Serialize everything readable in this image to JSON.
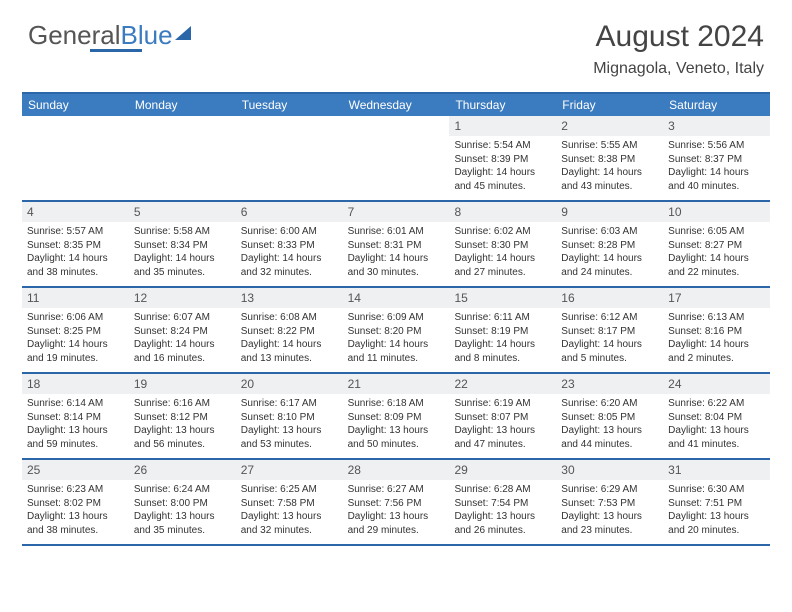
{
  "logo": {
    "text1": "General",
    "text2": "Blue"
  },
  "title": "August 2024",
  "location": "Mignagola, Veneto, Italy",
  "colors": {
    "brand": "#3b7bbf",
    "border": "#2a66a8",
    "header_bg": "#3b7bbf",
    "daynum_bg": "#eef0f2"
  },
  "daysOfWeek": [
    "Sunday",
    "Monday",
    "Tuesday",
    "Wednesday",
    "Thursday",
    "Friday",
    "Saturday"
  ],
  "weeks": [
    [
      {
        "n": "",
        "sr": "",
        "ss": "",
        "dl": ""
      },
      {
        "n": "",
        "sr": "",
        "ss": "",
        "dl": ""
      },
      {
        "n": "",
        "sr": "",
        "ss": "",
        "dl": ""
      },
      {
        "n": "",
        "sr": "",
        "ss": "",
        "dl": ""
      },
      {
        "n": "1",
        "sr": "Sunrise: 5:54 AM",
        "ss": "Sunset: 8:39 PM",
        "dl": "Daylight: 14 hours and 45 minutes."
      },
      {
        "n": "2",
        "sr": "Sunrise: 5:55 AM",
        "ss": "Sunset: 8:38 PM",
        "dl": "Daylight: 14 hours and 43 minutes."
      },
      {
        "n": "3",
        "sr": "Sunrise: 5:56 AM",
        "ss": "Sunset: 8:37 PM",
        "dl": "Daylight: 14 hours and 40 minutes."
      }
    ],
    [
      {
        "n": "4",
        "sr": "Sunrise: 5:57 AM",
        "ss": "Sunset: 8:35 PM",
        "dl": "Daylight: 14 hours and 38 minutes."
      },
      {
        "n": "5",
        "sr": "Sunrise: 5:58 AM",
        "ss": "Sunset: 8:34 PM",
        "dl": "Daylight: 14 hours and 35 minutes."
      },
      {
        "n": "6",
        "sr": "Sunrise: 6:00 AM",
        "ss": "Sunset: 8:33 PM",
        "dl": "Daylight: 14 hours and 32 minutes."
      },
      {
        "n": "7",
        "sr": "Sunrise: 6:01 AM",
        "ss": "Sunset: 8:31 PM",
        "dl": "Daylight: 14 hours and 30 minutes."
      },
      {
        "n": "8",
        "sr": "Sunrise: 6:02 AM",
        "ss": "Sunset: 8:30 PM",
        "dl": "Daylight: 14 hours and 27 minutes."
      },
      {
        "n": "9",
        "sr": "Sunrise: 6:03 AM",
        "ss": "Sunset: 8:28 PM",
        "dl": "Daylight: 14 hours and 24 minutes."
      },
      {
        "n": "10",
        "sr": "Sunrise: 6:05 AM",
        "ss": "Sunset: 8:27 PM",
        "dl": "Daylight: 14 hours and 22 minutes."
      }
    ],
    [
      {
        "n": "11",
        "sr": "Sunrise: 6:06 AM",
        "ss": "Sunset: 8:25 PM",
        "dl": "Daylight: 14 hours and 19 minutes."
      },
      {
        "n": "12",
        "sr": "Sunrise: 6:07 AM",
        "ss": "Sunset: 8:24 PM",
        "dl": "Daylight: 14 hours and 16 minutes."
      },
      {
        "n": "13",
        "sr": "Sunrise: 6:08 AM",
        "ss": "Sunset: 8:22 PM",
        "dl": "Daylight: 14 hours and 13 minutes."
      },
      {
        "n": "14",
        "sr": "Sunrise: 6:09 AM",
        "ss": "Sunset: 8:20 PM",
        "dl": "Daylight: 14 hours and 11 minutes."
      },
      {
        "n": "15",
        "sr": "Sunrise: 6:11 AM",
        "ss": "Sunset: 8:19 PM",
        "dl": "Daylight: 14 hours and 8 minutes."
      },
      {
        "n": "16",
        "sr": "Sunrise: 6:12 AM",
        "ss": "Sunset: 8:17 PM",
        "dl": "Daylight: 14 hours and 5 minutes."
      },
      {
        "n": "17",
        "sr": "Sunrise: 6:13 AM",
        "ss": "Sunset: 8:16 PM",
        "dl": "Daylight: 14 hours and 2 minutes."
      }
    ],
    [
      {
        "n": "18",
        "sr": "Sunrise: 6:14 AM",
        "ss": "Sunset: 8:14 PM",
        "dl": "Daylight: 13 hours and 59 minutes."
      },
      {
        "n": "19",
        "sr": "Sunrise: 6:16 AM",
        "ss": "Sunset: 8:12 PM",
        "dl": "Daylight: 13 hours and 56 minutes."
      },
      {
        "n": "20",
        "sr": "Sunrise: 6:17 AM",
        "ss": "Sunset: 8:10 PM",
        "dl": "Daylight: 13 hours and 53 minutes."
      },
      {
        "n": "21",
        "sr": "Sunrise: 6:18 AM",
        "ss": "Sunset: 8:09 PM",
        "dl": "Daylight: 13 hours and 50 minutes."
      },
      {
        "n": "22",
        "sr": "Sunrise: 6:19 AM",
        "ss": "Sunset: 8:07 PM",
        "dl": "Daylight: 13 hours and 47 minutes."
      },
      {
        "n": "23",
        "sr": "Sunrise: 6:20 AM",
        "ss": "Sunset: 8:05 PM",
        "dl": "Daylight: 13 hours and 44 minutes."
      },
      {
        "n": "24",
        "sr": "Sunrise: 6:22 AM",
        "ss": "Sunset: 8:04 PM",
        "dl": "Daylight: 13 hours and 41 minutes."
      }
    ],
    [
      {
        "n": "25",
        "sr": "Sunrise: 6:23 AM",
        "ss": "Sunset: 8:02 PM",
        "dl": "Daylight: 13 hours and 38 minutes."
      },
      {
        "n": "26",
        "sr": "Sunrise: 6:24 AM",
        "ss": "Sunset: 8:00 PM",
        "dl": "Daylight: 13 hours and 35 minutes."
      },
      {
        "n": "27",
        "sr": "Sunrise: 6:25 AM",
        "ss": "Sunset: 7:58 PM",
        "dl": "Daylight: 13 hours and 32 minutes."
      },
      {
        "n": "28",
        "sr": "Sunrise: 6:27 AM",
        "ss": "Sunset: 7:56 PM",
        "dl": "Daylight: 13 hours and 29 minutes."
      },
      {
        "n": "29",
        "sr": "Sunrise: 6:28 AM",
        "ss": "Sunset: 7:54 PM",
        "dl": "Daylight: 13 hours and 26 minutes."
      },
      {
        "n": "30",
        "sr": "Sunrise: 6:29 AM",
        "ss": "Sunset: 7:53 PM",
        "dl": "Daylight: 13 hours and 23 minutes."
      },
      {
        "n": "31",
        "sr": "Sunrise: 6:30 AM",
        "ss": "Sunset: 7:51 PM",
        "dl": "Daylight: 13 hours and 20 minutes."
      }
    ]
  ]
}
